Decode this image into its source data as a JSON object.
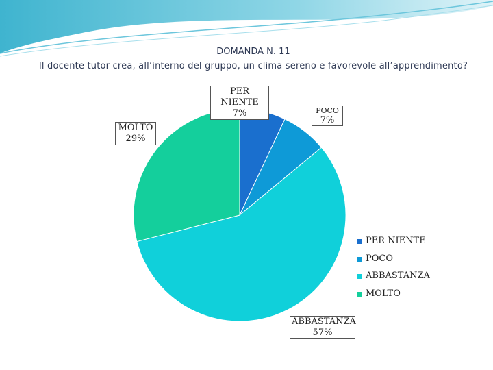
{
  "slide": {
    "title_line1": "DOMANDA N. 11",
    "title_line2": "Il docente tutor crea, all’interno del gruppo, un clima sereno e favorevole all’apprendimento?"
  },
  "chart_data": {
    "type": "pie",
    "categories": [
      "PER NIENTE",
      "POCO",
      "ABBASTANZA",
      "MOLTO"
    ],
    "values": [
      7,
      7,
      57,
      29
    ],
    "labels": [
      "7%",
      "7%",
      "57%",
      "29%"
    ],
    "colors": [
      "#1a6fce",
      "#0e9ad7",
      "#10d0da",
      "#14cf9c"
    ],
    "legend_position": "right"
  }
}
